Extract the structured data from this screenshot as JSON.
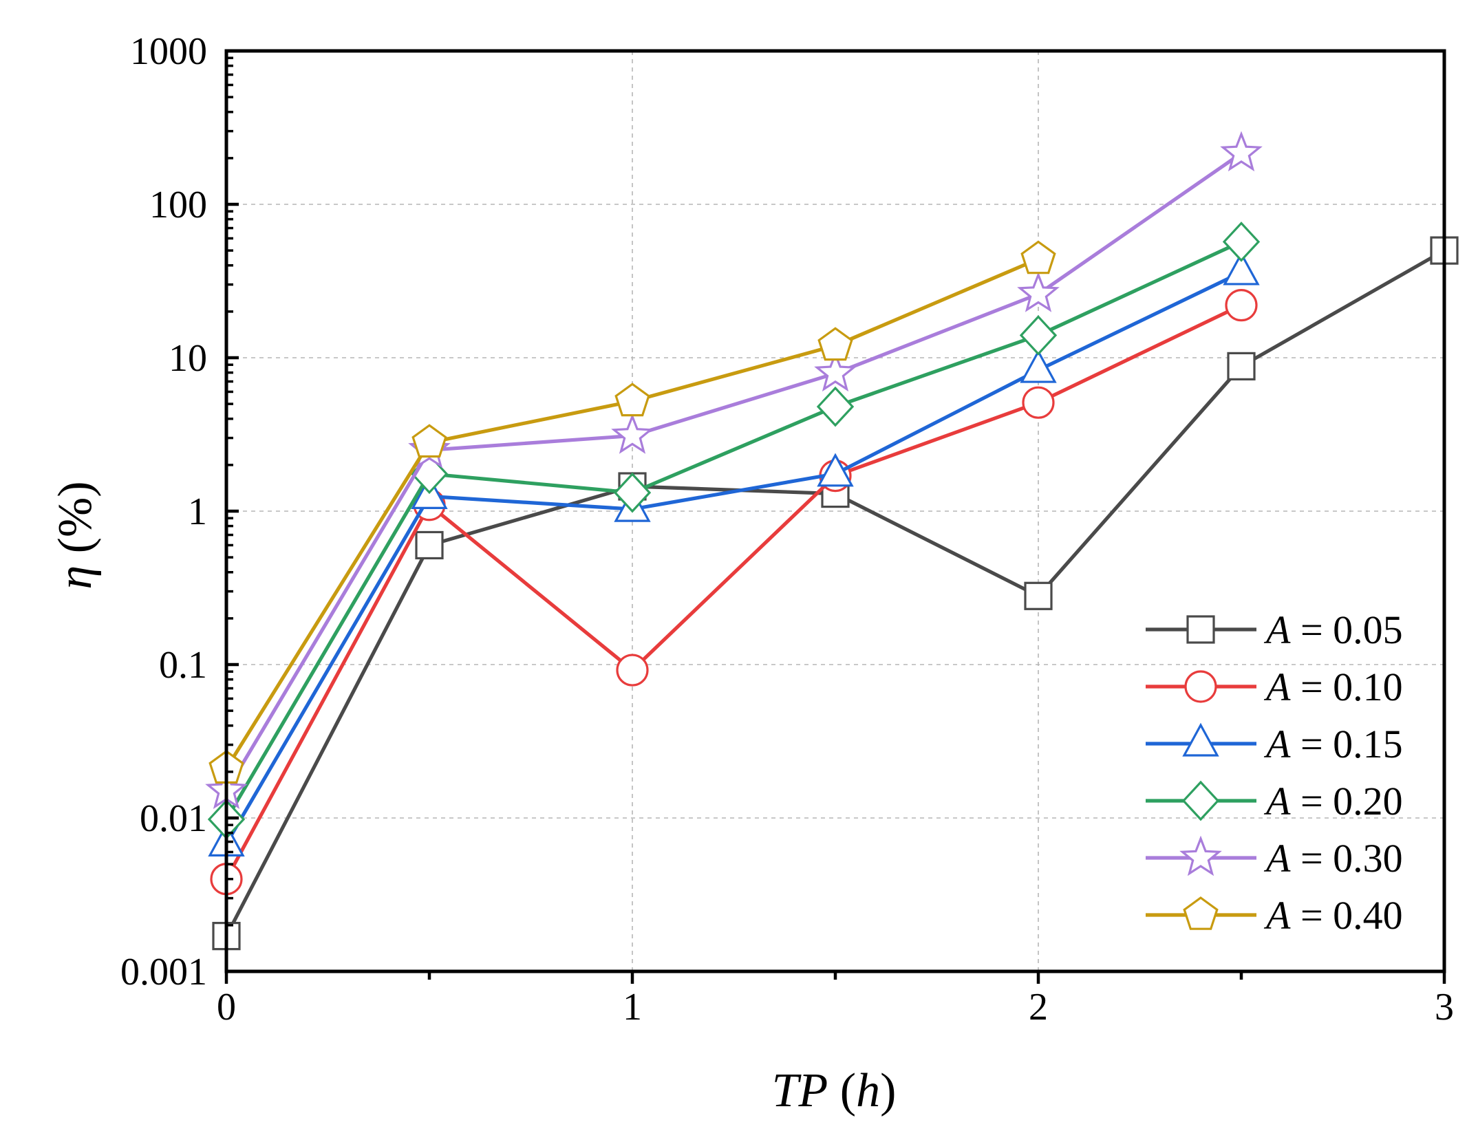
{
  "chart_data": {
    "type": "line",
    "title": "",
    "xlabel": {
      "var": "TP",
      "unit": "h"
    },
    "ylabel": {
      "var": "η",
      "unit": "%"
    },
    "xlim": [
      0,
      3
    ],
    "ylim": [
      0.001,
      1000
    ],
    "yscale": "log",
    "grid": true,
    "legend_position": "bottom-right",
    "x_ticks": [
      {
        "value": 0,
        "label": "0"
      },
      {
        "value": 1,
        "label": "1"
      },
      {
        "value": 2,
        "label": "2"
      },
      {
        "value": 3,
        "label": "3"
      }
    ],
    "y_ticks": [
      {
        "value": 0.001,
        "label": "0.001"
      },
      {
        "value": 0.01,
        "label": "0.01"
      },
      {
        "value": 0.1,
        "label": "0.1"
      },
      {
        "value": 1,
        "label": "1"
      },
      {
        "value": 10,
        "label": "10"
      },
      {
        "value": 100,
        "label": "100"
      },
      {
        "value": 1000,
        "label": "1000"
      }
    ],
    "series": [
      {
        "name": "A = 0.05",
        "param": "A",
        "value_label": " = 0.05",
        "color": "#4a4a4a",
        "marker": "square",
        "x": [
          0,
          0.5,
          1,
          1.5,
          2,
          2.5,
          3
        ],
        "y": [
          0.0017,
          0.6,
          1.45,
          1.3,
          0.28,
          8.8,
          50
        ]
      },
      {
        "name": "A = 0.10",
        "param": "A",
        "value_label": " = 0.10",
        "color": "#e83c3c",
        "marker": "circle",
        "x": [
          0,
          0.5,
          1,
          1.5,
          2,
          2.5
        ],
        "y": [
          0.004,
          1.1,
          0.092,
          1.7,
          5.1,
          22
        ]
      },
      {
        "name": "A = 0.15",
        "param": "A",
        "value_label": " = 0.15",
        "color": "#1f66d6",
        "marker": "triangle",
        "x": [
          0,
          0.5,
          1,
          1.5,
          2,
          2.5
        ],
        "y": [
          0.0068,
          1.25,
          1.03,
          1.75,
          8.3,
          36
        ]
      },
      {
        "name": "A = 0.20",
        "param": "A",
        "value_label": " = 0.20",
        "color": "#2ea060",
        "marker": "diamond",
        "x": [
          0,
          0.5,
          1,
          1.5,
          2,
          2.5
        ],
        "y": [
          0.0098,
          1.75,
          1.32,
          4.8,
          14,
          57
        ]
      },
      {
        "name": "A = 0.30",
        "param": "A",
        "value_label": " = 0.30",
        "color": "#a97ddb",
        "marker": "star",
        "x": [
          0,
          0.5,
          1,
          1.5,
          2,
          2.5
        ],
        "y": [
          0.015,
          2.5,
          3.1,
          7.9,
          26,
          215
        ]
      },
      {
        "name": "A = 0.40",
        "param": "A",
        "value_label": " = 0.40",
        "color": "#c89b10",
        "marker": "pentagon",
        "x": [
          0,
          0.5,
          1,
          2,
          1.5
        ],
        "y": [
          0.021,
          2.8,
          5.2,
          44,
          12
        ],
        "order_note": "sorted in script"
      }
    ]
  }
}
